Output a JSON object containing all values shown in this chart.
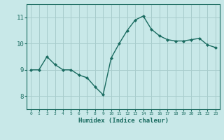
{
  "x": [
    0,
    1,
    2,
    3,
    4,
    5,
    6,
    7,
    8,
    9,
    10,
    11,
    12,
    13,
    14,
    15,
    16,
    17,
    18,
    19,
    20,
    21,
    22,
    23
  ],
  "y": [
    9.0,
    9.0,
    9.5,
    9.2,
    9.0,
    9.0,
    8.8,
    8.7,
    8.35,
    8.05,
    9.45,
    10.0,
    10.5,
    10.9,
    11.05,
    10.55,
    10.3,
    10.15,
    10.1,
    10.1,
    10.15,
    10.2,
    9.95,
    9.85
  ],
  "xlabel": "Humidex (Indice chaleur)",
  "xlim": [
    -0.5,
    23.5
  ],
  "ylim": [
    7.5,
    11.5
  ],
  "yticks": [
    8,
    9,
    10,
    11
  ],
  "xticks": [
    0,
    1,
    2,
    3,
    4,
    5,
    6,
    7,
    8,
    9,
    10,
    11,
    12,
    13,
    14,
    15,
    16,
    17,
    18,
    19,
    20,
    21,
    22,
    23
  ],
  "line_color": "#1a6b60",
  "marker_color": "#1a6b60",
  "bg_color": "#c8e8e8",
  "grid_color": "#a8cccc",
  "tick_label_color": "#1a6b60",
  "axis_color": "#1a6b60",
  "xlabel_color": "#1a6b60"
}
